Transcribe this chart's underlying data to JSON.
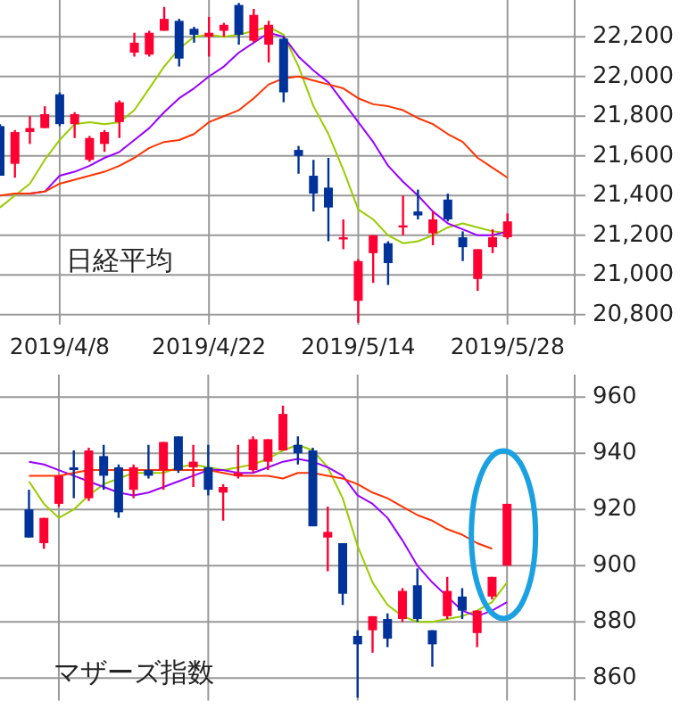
{
  "chart_data": [
    {
      "type": "candlestick",
      "title": "日経平均",
      "categories": [
        null,
        null,
        null,
        null,
        "2019/4/8",
        null,
        null,
        null,
        null,
        null,
        null,
        null,
        null,
        null,
        "2019/4/22",
        null,
        null,
        null,
        null,
        null,
        null,
        null,
        null,
        null,
        "2019/5/14",
        null,
        null,
        null,
        null,
        null,
        null,
        null,
        null,
        null,
        "2019/5/28"
      ],
      "ohlc": [
        [
          21750,
          21760,
          21500,
          21500
        ],
        [
          21560,
          21730,
          21490,
          21720
        ],
        [
          21720,
          21800,
          21660,
          21740
        ],
        [
          21740,
          21850,
          21740,
          21810
        ],
        [
          21910,
          21920,
          21750,
          21760
        ],
        [
          21760,
          21820,
          21690,
          21810
        ],
        [
          21580,
          21700,
          21570,
          21690
        ],
        [
          21660,
          21730,
          21620,
          21720
        ],
        [
          21770,
          21880,
          21690,
          21870
        ],
        [
          22120,
          22220,
          22100,
          22170
        ],
        [
          22110,
          22230,
          22100,
          22220
        ],
        [
          22230,
          22350,
          22230,
          22290
        ],
        [
          22280,
          22290,
          22050,
          22090
        ],
        [
          22240,
          22250,
          22170,
          22210
        ],
        [
          22200,
          22300,
          22100,
          22220
        ],
        [
          22230,
          22270,
          22200,
          22260
        ],
        [
          22360,
          22370,
          22160,
          22210
        ],
        [
          22180,
          22340,
          22170,
          22310
        ],
        [
          22160,
          22280,
          22070,
          22260
        ],
        [
          22190,
          22200,
          21870,
          21920
        ],
        [
          21630,
          21650,
          21510,
          21600
        ],
        [
          21500,
          21580,
          21320,
          21410
        ],
        [
          21440,
          21590,
          21170,
          21340
        ],
        [
          21180,
          21280,
          21130,
          21190
        ],
        [
          20870,
          21080,
          20760,
          21070
        ],
        [
          21110,
          21200,
          20960,
          21200
        ],
        [
          21160,
          21170,
          20950,
          21060
        ],
        [
          21240,
          21400,
          21200,
          21250
        ],
        [
          21320,
          21430,
          21280,
          21300
        ],
        [
          21210,
          21320,
          21150,
          21280
        ],
        [
          21380,
          21410,
          21270,
          21280
        ],
        [
          21190,
          21220,
          21070,
          21140
        ],
        [
          20980,
          21130,
          20920,
          21130
        ],
        [
          21140,
          21230,
          21110,
          21190
        ],
        [
          21190,
          21310,
          21180,
          21270
        ]
      ],
      "colors": [
        "#003399",
        "#ff0033",
        "#ff0033",
        "#ff0033",
        "#003399",
        "#ff0033",
        "#ff0033",
        "#ff0033",
        "#ff0033",
        "#ff0033",
        "#ff0033",
        "#ff0033",
        "#003399",
        "#003399",
        "#ff0033",
        "#ff0033",
        "#003399",
        "#ff0033",
        "#ff0033",
        "#003399",
        "#003399",
        "#003399",
        "#003399",
        "#ff0033",
        "#ff0033",
        "#ff0033",
        "#003399",
        "#ff0033",
        "#003399",
        "#ff0033",
        "#003399",
        "#003399",
        "#ff0033",
        "#ff0033",
        "#ff0033"
      ],
      "series": [
        {
          "type": "line",
          "color": "#99cc00",
          "values": [
            21340,
            21400,
            21460,
            21580,
            21680,
            21760,
            21770,
            21760,
            21770,
            21830,
            21940,
            22050,
            22140,
            22200,
            22210,
            22200,
            22210,
            22230,
            22250,
            22210,
            22050,
            21850,
            21710,
            21530,
            21330,
            21280,
            21200,
            21160,
            21170,
            21200,
            21240,
            21260,
            21240,
            21220,
            21210
          ]
        },
        {
          "type": "line",
          "color": "#9900ff",
          "values": [
            null,
            null,
            21410,
            21420,
            21500,
            21520,
            21550,
            21590,
            21620,
            21680,
            21740,
            21820,
            21890,
            21940,
            22000,
            22050,
            22120,
            22170,
            22220,
            22200,
            22100,
            22030,
            21970,
            21870,
            21770,
            21670,
            21550,
            21470,
            21400,
            21320,
            21260,
            21230,
            21200,
            21200,
            21220
          ]
        },
        {
          "type": "line",
          "color": "#ff3300",
          "values": [
            21400,
            21410,
            21410,
            21420,
            21460,
            21480,
            21500,
            21520,
            21550,
            21590,
            21640,
            21670,
            21680,
            21710,
            21770,
            21800,
            21830,
            21890,
            21960,
            21990,
            22000,
            21980,
            21960,
            21940,
            21890,
            21860,
            21850,
            21830,
            21790,
            21760,
            21710,
            21670,
            21590,
            21540,
            21490
          ]
        }
      ],
      "ylim": [
        20750,
        22385
      ],
      "yticks": [
        {
          "value": 20800,
          "label": "20,800"
        },
        {
          "value": 21000,
          "label": "21,000"
        },
        {
          "value": 21200,
          "label": "21,200"
        },
        {
          "value": 21400,
          "label": "21,400"
        },
        {
          "value": 21600,
          "label": "21,600"
        },
        {
          "value": 21800,
          "label": "21,800"
        },
        {
          "value": 22000,
          "label": "22,000"
        },
        {
          "value": 22200,
          "label": "22,200"
        }
      ],
      "grid": true
    },
    {
      "type": "candlestick",
      "title": "マザーズ指数",
      "categories": [
        null,
        null,
        "2019/4/8",
        null,
        null,
        null,
        null,
        null,
        null,
        null,
        null,
        null,
        "2019/4/22",
        null,
        null,
        null,
        null,
        null,
        null,
        null,
        null,
        null,
        "2019/5/14",
        null,
        null,
        null,
        null,
        null,
        null,
        null,
        null,
        null,
        "2019/5/28"
      ],
      "ohlc": [
        [
          920,
          927,
          910,
          910
        ],
        [
          908,
          917,
          906,
          917
        ],
        [
          922,
          932,
          921,
          932
        ],
        [
          935,
          941,
          924,
          934
        ],
        [
          924,
          942,
          923,
          941
        ],
        [
          939,
          943,
          927,
          932
        ],
        [
          935,
          936,
          917,
          919
        ],
        [
          927,
          936,
          924,
          935
        ],
        [
          934,
          943,
          931,
          932
        ],
        [
          934,
          944,
          927,
          944
        ],
        [
          946,
          946,
          933,
          934
        ],
        [
          935,
          943,
          928,
          937
        ],
        [
          935,
          943,
          925,
          927
        ],
        [
          926,
          929,
          916,
          928
        ],
        [
          932,
          943,
          931,
          933
        ],
        [
          934,
          946,
          933,
          945
        ],
        [
          937,
          945,
          934,
          945
        ],
        [
          941,
          957,
          941,
          954
        ],
        [
          943,
          946,
          936,
          940
        ],
        [
          941,
          942,
          914,
          914
        ],
        [
          910,
          921,
          898,
          912
        ],
        [
          908,
          908,
          886,
          890
        ],
        [
          875,
          877,
          853,
          872
        ],
        [
          877,
          882,
          869,
          882
        ],
        [
          881,
          883,
          871,
          874
        ],
        [
          881,
          892,
          880,
          891
        ],
        [
          893,
          899,
          880,
          881
        ],
        [
          877,
          877,
          864,
          872
        ],
        [
          882,
          896,
          881,
          891
        ],
        [
          889,
          892,
          881,
          884
        ],
        [
          876,
          884,
          871,
          884
        ],
        [
          889,
          896,
          888,
          896
        ],
        [
          900,
          922,
          900,
          922
        ]
      ],
      "colors": [
        "#003399",
        "#ff0033",
        "#ff0033",
        "#003399",
        "#ff0033",
        "#003399",
        "#003399",
        "#ff0033",
        "#003399",
        "#ff0033",
        "#003399",
        "#ff0033",
        "#003399",
        "#ff0033",
        "#ff0033",
        "#ff0033",
        "#ff0033",
        "#ff0033",
        "#003399",
        "#003399",
        "#ff0033",
        "#003399",
        "#003399",
        "#ff0033",
        "#003399",
        "#ff0033",
        "#003399",
        "#003399",
        "#ff0033",
        "#003399",
        "#ff0033",
        "#ff0033",
        "#ff0033"
      ],
      "series": [
        {
          "type": "line",
          "color": "#99cc00",
          "values": [
            930,
            922,
            917,
            920,
            925,
            929,
            931,
            933,
            933,
            933,
            935,
            936,
            935,
            934,
            935,
            936,
            938,
            941,
            943,
            941,
            935,
            924,
            907,
            894,
            886,
            882,
            880,
            880,
            881,
            882,
            884,
            887,
            894
          ]
        },
        {
          "type": "line",
          "color": "#9900ff",
          "values": [
            937,
            936,
            934,
            932,
            930,
            928,
            926,
            925,
            926,
            928,
            930,
            932,
            934,
            934,
            933,
            933,
            935,
            937,
            938,
            937,
            935,
            932,
            925,
            922,
            917,
            909,
            900,
            894,
            889,
            884,
            882,
            884,
            887
          ]
        },
        {
          "type": "line",
          "color": "#ff3300",
          "values": [
            932,
            932,
            932,
            933,
            934,
            934,
            934,
            934,
            934,
            934,
            934,
            934,
            934,
            933,
            932,
            932,
            932,
            931,
            933,
            933,
            932,
            931,
            929,
            926,
            924,
            921,
            918,
            916,
            913,
            911,
            908,
            906,
            null
          ]
        }
      ],
      "ylim": [
        852,
        968
      ],
      "yticks": [
        860,
        880,
        900,
        920,
        940,
        960
      ],
      "grid": true,
      "tick_labels": "y"
    }
  ]
}
